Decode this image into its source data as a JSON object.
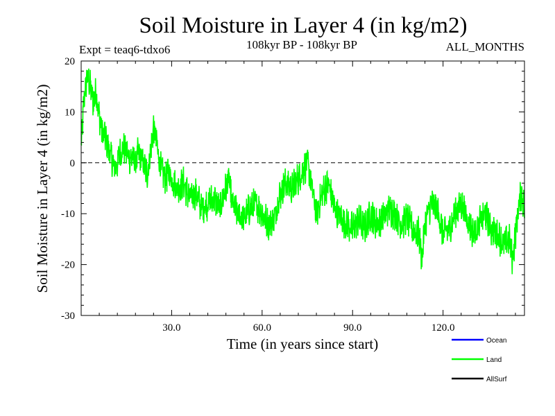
{
  "title": "Soil Moisture in Layer 4 (in kg/m2)",
  "subtitle_left": "Expt = teaq6-tdxo6",
  "subtitle_center": "108kyr BP - 108kyr BP",
  "subtitle_right": "ALL_MONTHS",
  "chart_data": {
    "type": "line",
    "title": "Soil Moisture in Layer 4 (in kg/m2)",
    "xlabel": "Time (in years since start)",
    "ylabel": "Soil Moisture in Layer 4 (in kg/m2)",
    "xlim": [
      0,
      147
    ],
    "ylim": [
      -30,
      20
    ],
    "xticks": [
      30,
      60,
      90,
      120
    ],
    "xtick_labels": [
      "30.0",
      "60.0",
      "90.0",
      "120.0"
    ],
    "yticks": [
      20,
      10,
      0,
      -10,
      -20,
      -30
    ],
    "ytick_labels": [
      "20",
      "10",
      "0",
      "-10",
      "-20",
      "-30"
    ],
    "reference_line": 0,
    "legend_position": "bottom-right",
    "legend": [
      {
        "name": "Ocean",
        "color": "#0000ff"
      },
      {
        "name": "Land",
        "color": "#00ff00"
      },
      {
        "name": "AllSurf",
        "color": "#000000"
      }
    ],
    "series": [
      {
        "name": "Land",
        "color": "#00ff00",
        "x": [
          0,
          1,
          2,
          3,
          4,
          5,
          6,
          7,
          8,
          9,
          10,
          11,
          12,
          13,
          14,
          15,
          16,
          17,
          18,
          19,
          20,
          21,
          22,
          23,
          24,
          25,
          26,
          27,
          28,
          29,
          30,
          32,
          34,
          36,
          38,
          40,
          42,
          44,
          46,
          48,
          49,
          50,
          52,
          54,
          56,
          58,
          60,
          62,
          64,
          66,
          68,
          70,
          72,
          74,
          75,
          76,
          78,
          80,
          82,
          84,
          86,
          88,
          90,
          92,
          94,
          96,
          98,
          100,
          102,
          104,
          106,
          108,
          110,
          112,
          113,
          114,
          116,
          118,
          120,
          122,
          124,
          126,
          128,
          130,
          132,
          134,
          136,
          138,
          140,
          142,
          143,
          144,
          145,
          146,
          147
        ],
        "values": [
          3,
          13,
          17,
          15,
          12,
          14,
          9,
          6,
          5,
          3,
          1,
          -1,
          0,
          2,
          3,
          2,
          1,
          1,
          0,
          2,
          1,
          -1,
          -2,
          2,
          7,
          4,
          0,
          -2,
          -3,
          -2,
          -3,
          -5,
          -4,
          -7,
          -6,
          -9,
          -8,
          -7,
          -9,
          -5,
          -3,
          -8,
          -10,
          -11,
          -9,
          -8,
          -10,
          -12,
          -11,
          -6,
          -4,
          -5,
          -3,
          -1,
          0,
          -3,
          -10,
          -6,
          -4,
          -9,
          -11,
          -12,
          -13,
          -11,
          -13,
          -10,
          -12,
          -11,
          -9,
          -10,
          -12,
          -11,
          -13,
          -14,
          -19,
          -12,
          -8,
          -9,
          -14,
          -13,
          -10,
          -8,
          -11,
          -14,
          -12,
          -10,
          -13,
          -14,
          -16,
          -15,
          -19,
          -14,
          -9,
          -6,
          -9
        ]
      }
    ]
  }
}
